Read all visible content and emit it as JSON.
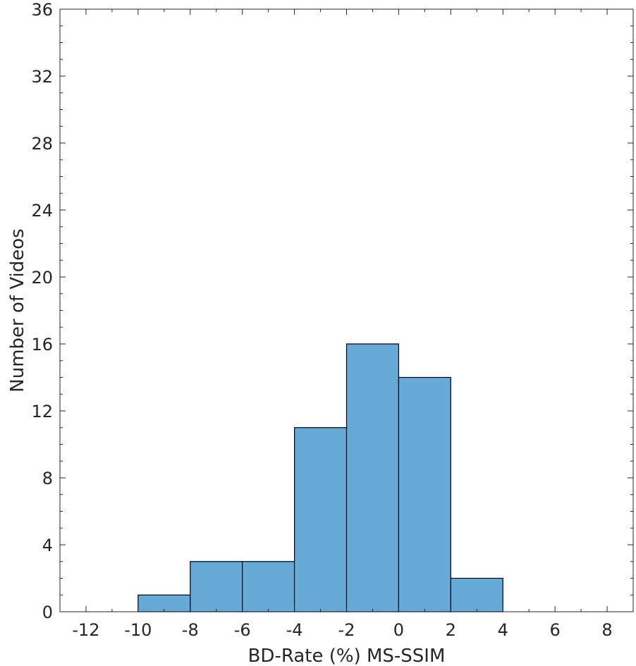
{
  "chart_data": {
    "type": "histogram",
    "bins": [
      {
        "start": -10,
        "end": -8,
        "count": 1
      },
      {
        "start": -8,
        "end": -6,
        "count": 3
      },
      {
        "start": -6,
        "end": -4,
        "count": 3
      },
      {
        "start": -4,
        "end": -2,
        "count": 11
      },
      {
        "start": -2,
        "end": 0,
        "count": 16
      },
      {
        "start": 0,
        "end": 2,
        "count": 14
      },
      {
        "start": 2,
        "end": 4,
        "count": 2
      }
    ],
    "xlabel": "BD-Rate (%) MS-SSIM",
    "ylabel": "Number of Videos",
    "xlim": [
      -13,
      9
    ],
    "ylim": [
      0,
      36
    ],
    "x_ticks": [
      -12,
      -10,
      -8,
      -6,
      -4,
      -2,
      0,
      2,
      4,
      6,
      8
    ],
    "x_tick_labels": [
      "-12",
      "-10",
      "-8",
      "-6",
      "-4",
      "-2",
      "0",
      "2",
      "4",
      "6",
      "8"
    ],
    "y_ticks": [
      0,
      4,
      8,
      12,
      16,
      20,
      24,
      28,
      32,
      36
    ],
    "y_tick_labels": [
      "0",
      "4",
      "8",
      "12",
      "16",
      "20",
      "24",
      "28",
      "32",
      "36"
    ],
    "grid": false,
    "bar_color": "#66aad7",
    "edge_color": "#000000"
  }
}
